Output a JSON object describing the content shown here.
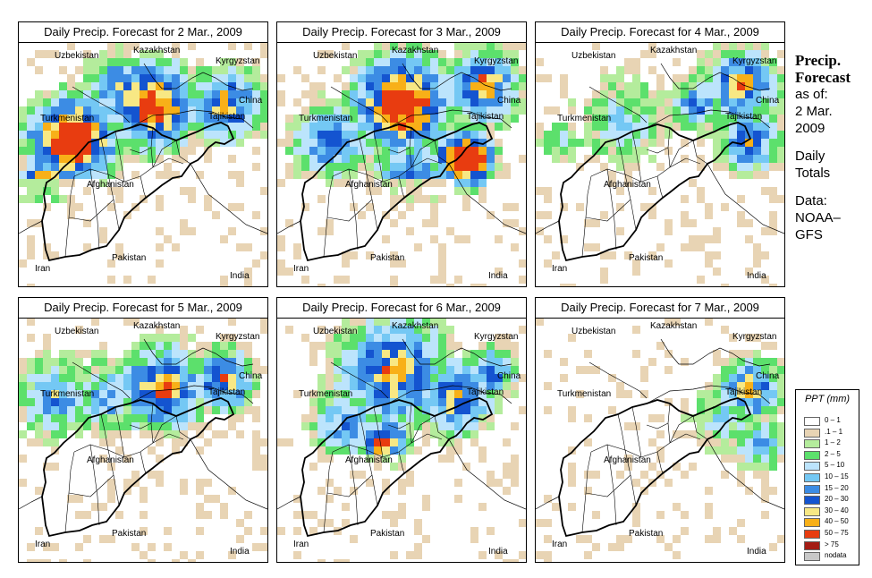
{
  "panels": [
    {
      "title": "Daily Precip. Forecast for  2 Mar., 2009",
      "day": 0
    },
    {
      "title": "Daily Precip. Forecast for  3 Mar., 2009",
      "day": 1
    },
    {
      "title": "Daily Precip. Forecast for  4 Mar., 2009",
      "day": 2
    },
    {
      "title": "Daily Precip. Forecast for  5 Mar., 2009",
      "day": 3
    },
    {
      "title": "Daily Precip. Forecast for  6 Mar., 2009",
      "day": 4
    },
    {
      "title": "Daily Precip. Forecast for  7 Mar., 2009",
      "day": 5
    }
  ],
  "country_labels": {
    "uzbekistan": "Uzbekistan",
    "kazakhstan": "Kazakhstan",
    "kyrgyzstan": "Kyrgyzstan",
    "china": "China",
    "turkmenistan": "Turkmenistan",
    "tajikistan": "Tajikistan",
    "afghanistan": "Afghanistan",
    "pakistan": "Pakistan",
    "iran": "Iran",
    "india": "India"
  },
  "side": {
    "title1": "Precip.",
    "title2": "Forecast",
    "asof": "as of:",
    "date1": "2 Mar.",
    "date2": "2009",
    "daily": "Daily",
    "totals": "Totals",
    "data_label": "Data:",
    "source1": "NOAA–",
    "source2": "GFS"
  },
  "legend": {
    "title": "PPT (mm)",
    "classes": [
      {
        "label": "0 – 1",
        "color": "#ffffff"
      },
      {
        "label": ".1 – 1",
        "color": "#e8d4b4"
      },
      {
        "label": "1 – 2",
        "color": "#b4ec9c"
      },
      {
        "label": "2 – 5",
        "color": "#5ce06c"
      },
      {
        "label": "5 – 10",
        "color": "#bce4fc"
      },
      {
        "label": "10 – 15",
        "color": "#74c8f4"
      },
      {
        "label": "15 – 20",
        "color": "#3c8ce4"
      },
      {
        "label": "20 – 30",
        "color": "#1454d0"
      },
      {
        "label": "30 – 40",
        "color": "#f8e884"
      },
      {
        "label": "40 – 50",
        "color": "#f8b018"
      },
      {
        "label": "50 – 75",
        "color": "#e83c10"
      },
      {
        "label": "> 75",
        "color": "#a41c14"
      },
      {
        "label": "nodata",
        "color": "#c8c8c8"
      }
    ]
  }
}
